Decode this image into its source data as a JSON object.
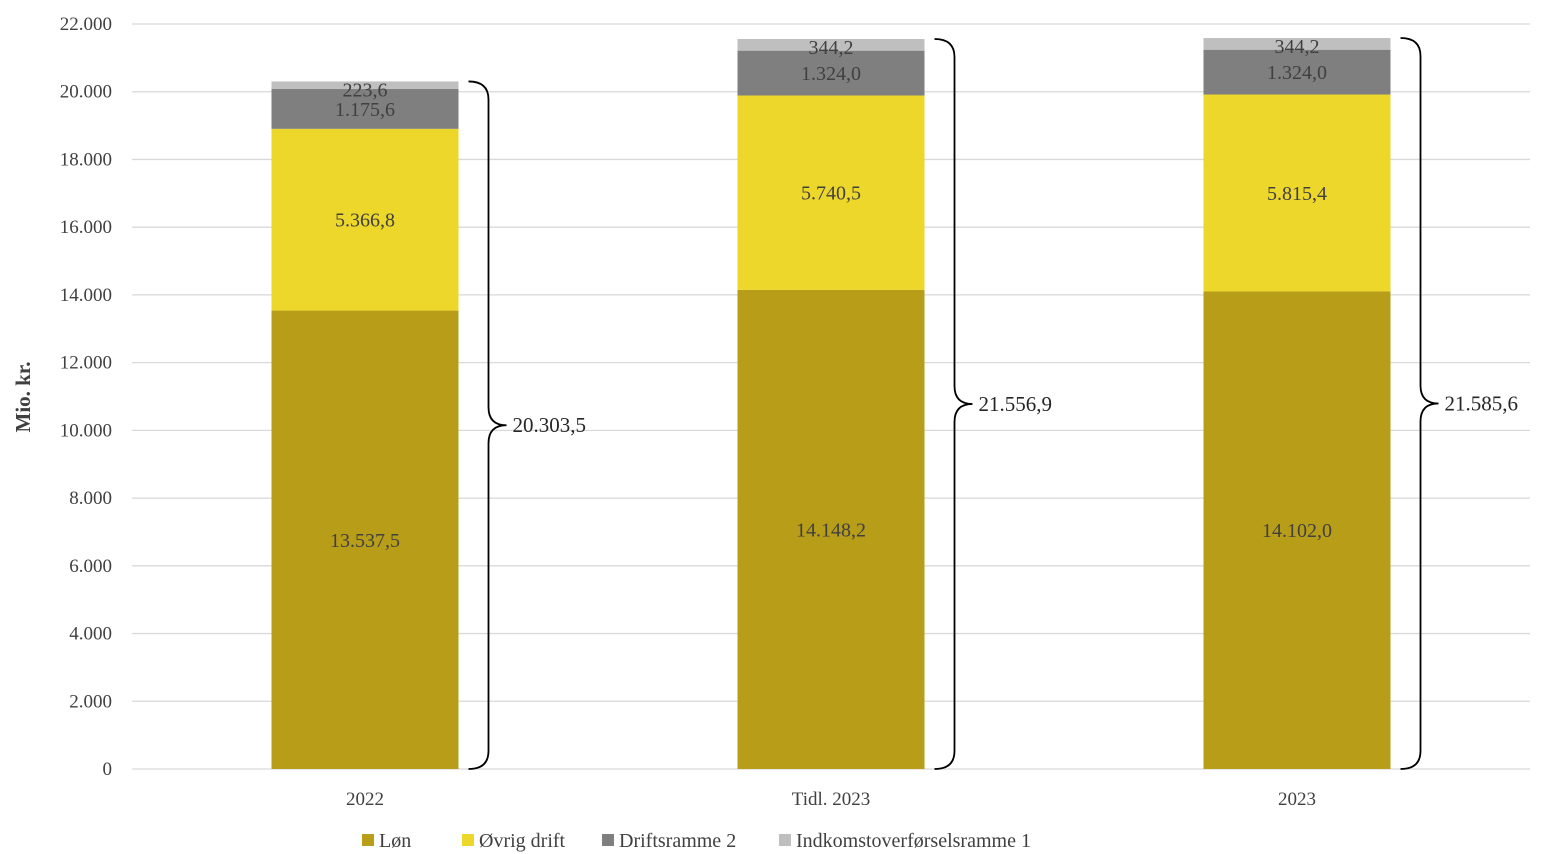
{
  "chart_data": {
    "type": "bar",
    "stacked": true,
    "categories": [
      "2022",
      "Tidl. 2023",
      "2023"
    ],
    "series": [
      {
        "name": "Løn",
        "color": "#B89D19",
        "values": [
          13537.5,
          14148.2,
          14102.0
        ],
        "labels": [
          "13.537,5",
          "14.148,2",
          "14.102,0"
        ]
      },
      {
        "name": "Øvrig drift",
        "color": "#EDD72A",
        "values": [
          5366.8,
          5740.5,
          5815.4
        ],
        "labels": [
          "5.366,8",
          "5.740,5",
          "5.815,4"
        ]
      },
      {
        "name": "Driftsramme 2",
        "color": "#7F7F7F",
        "values": [
          1175.6,
          1324.0,
          1324.0
        ],
        "labels": [
          "1.175,6",
          "1.324,0",
          "1.324,0"
        ]
      },
      {
        "name": "Indkomstoverførselsramme 1",
        "color": "#BFBFBF",
        "values": [
          223.6,
          344.2,
          344.2
        ],
        "labels": [
          "223,6",
          "344,2",
          "344,2"
        ]
      }
    ],
    "totals": [
      20303.5,
      21556.9,
      21585.6
    ],
    "total_labels": [
      "20.303,5",
      "21.556,9",
      "21.585,6"
    ],
    "ylabel": "Mio. kr.",
    "xlabel": "",
    "ylim": [
      0,
      22000
    ],
    "yticks": [
      0,
      2000,
      4000,
      6000,
      8000,
      10000,
      12000,
      14000,
      16000,
      18000,
      20000,
      22000
    ],
    "ytick_labels": [
      "0",
      "2.000",
      "4.000",
      "6.000",
      "8.000",
      "10.000",
      "12.000",
      "14.000",
      "16.000",
      "18.000",
      "20.000",
      "22.000"
    ],
    "grid": true,
    "legend_position": "bottom",
    "total_brackets": true
  }
}
